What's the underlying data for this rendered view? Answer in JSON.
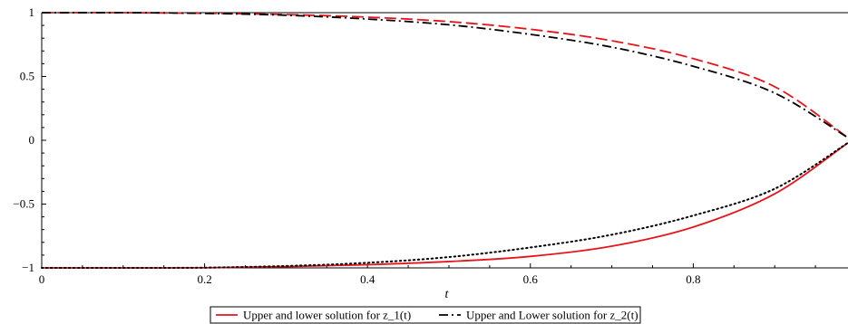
{
  "chart_data": {
    "type": "line",
    "title": "",
    "xlabel": "t",
    "ylabel": "",
    "xlim": [
      0,
      0.99
    ],
    "ylim": [
      -1,
      1
    ],
    "x_ticks": [
      0,
      0.2,
      0.4,
      0.6,
      0.8
    ],
    "x_tick_labels": [
      "0",
      "0.2",
      "0.4",
      "0.6",
      "0.8"
    ],
    "y_ticks": [
      -1,
      -0.5,
      0,
      0.5,
      1
    ],
    "y_tick_labels": [
      "−1",
      "−0.5",
      "0",
      "0.5",
      "1"
    ],
    "grid": false,
    "legend_position": "bottom",
    "x": [
      0,
      0.1,
      0.2,
      0.3,
      0.4,
      0.5,
      0.6,
      0.7,
      0.8,
      0.9,
      0.99
    ],
    "series": [
      {
        "name": "Upper and lower solution for z_1(t)",
        "legend_entry": true,
        "color": "#e8141b",
        "style": "solid",
        "values": [
          -1,
          -1,
          -0.999,
          -0.99,
          -0.975,
          -0.95,
          -0.91,
          -0.83,
          -0.68,
          -0.42,
          -0.02
        ]
      },
      {
        "name": "",
        "legend_entry": false,
        "color": "#e8141b",
        "style": "dashed",
        "values": [
          1,
          1,
          0.995,
          0.985,
          0.965,
          0.93,
          0.87,
          0.78,
          0.64,
          0.42,
          0.02
        ]
      },
      {
        "name": "Upper and Lower solution for z_2(t)",
        "legend_entry": true,
        "color": "#000000",
        "style": "dashdot",
        "values": [
          1,
          1,
          0.995,
          0.98,
          0.95,
          0.905,
          0.83,
          0.73,
          0.58,
          0.37,
          0.02
        ]
      },
      {
        "name": "",
        "legend_entry": false,
        "color": "#000000",
        "style": "dotted",
        "values": [
          -1,
          -1,
          -0.998,
          -0.985,
          -0.96,
          -0.915,
          -0.84,
          -0.74,
          -0.59,
          -0.38,
          -0.02
        ]
      }
    ]
  }
}
